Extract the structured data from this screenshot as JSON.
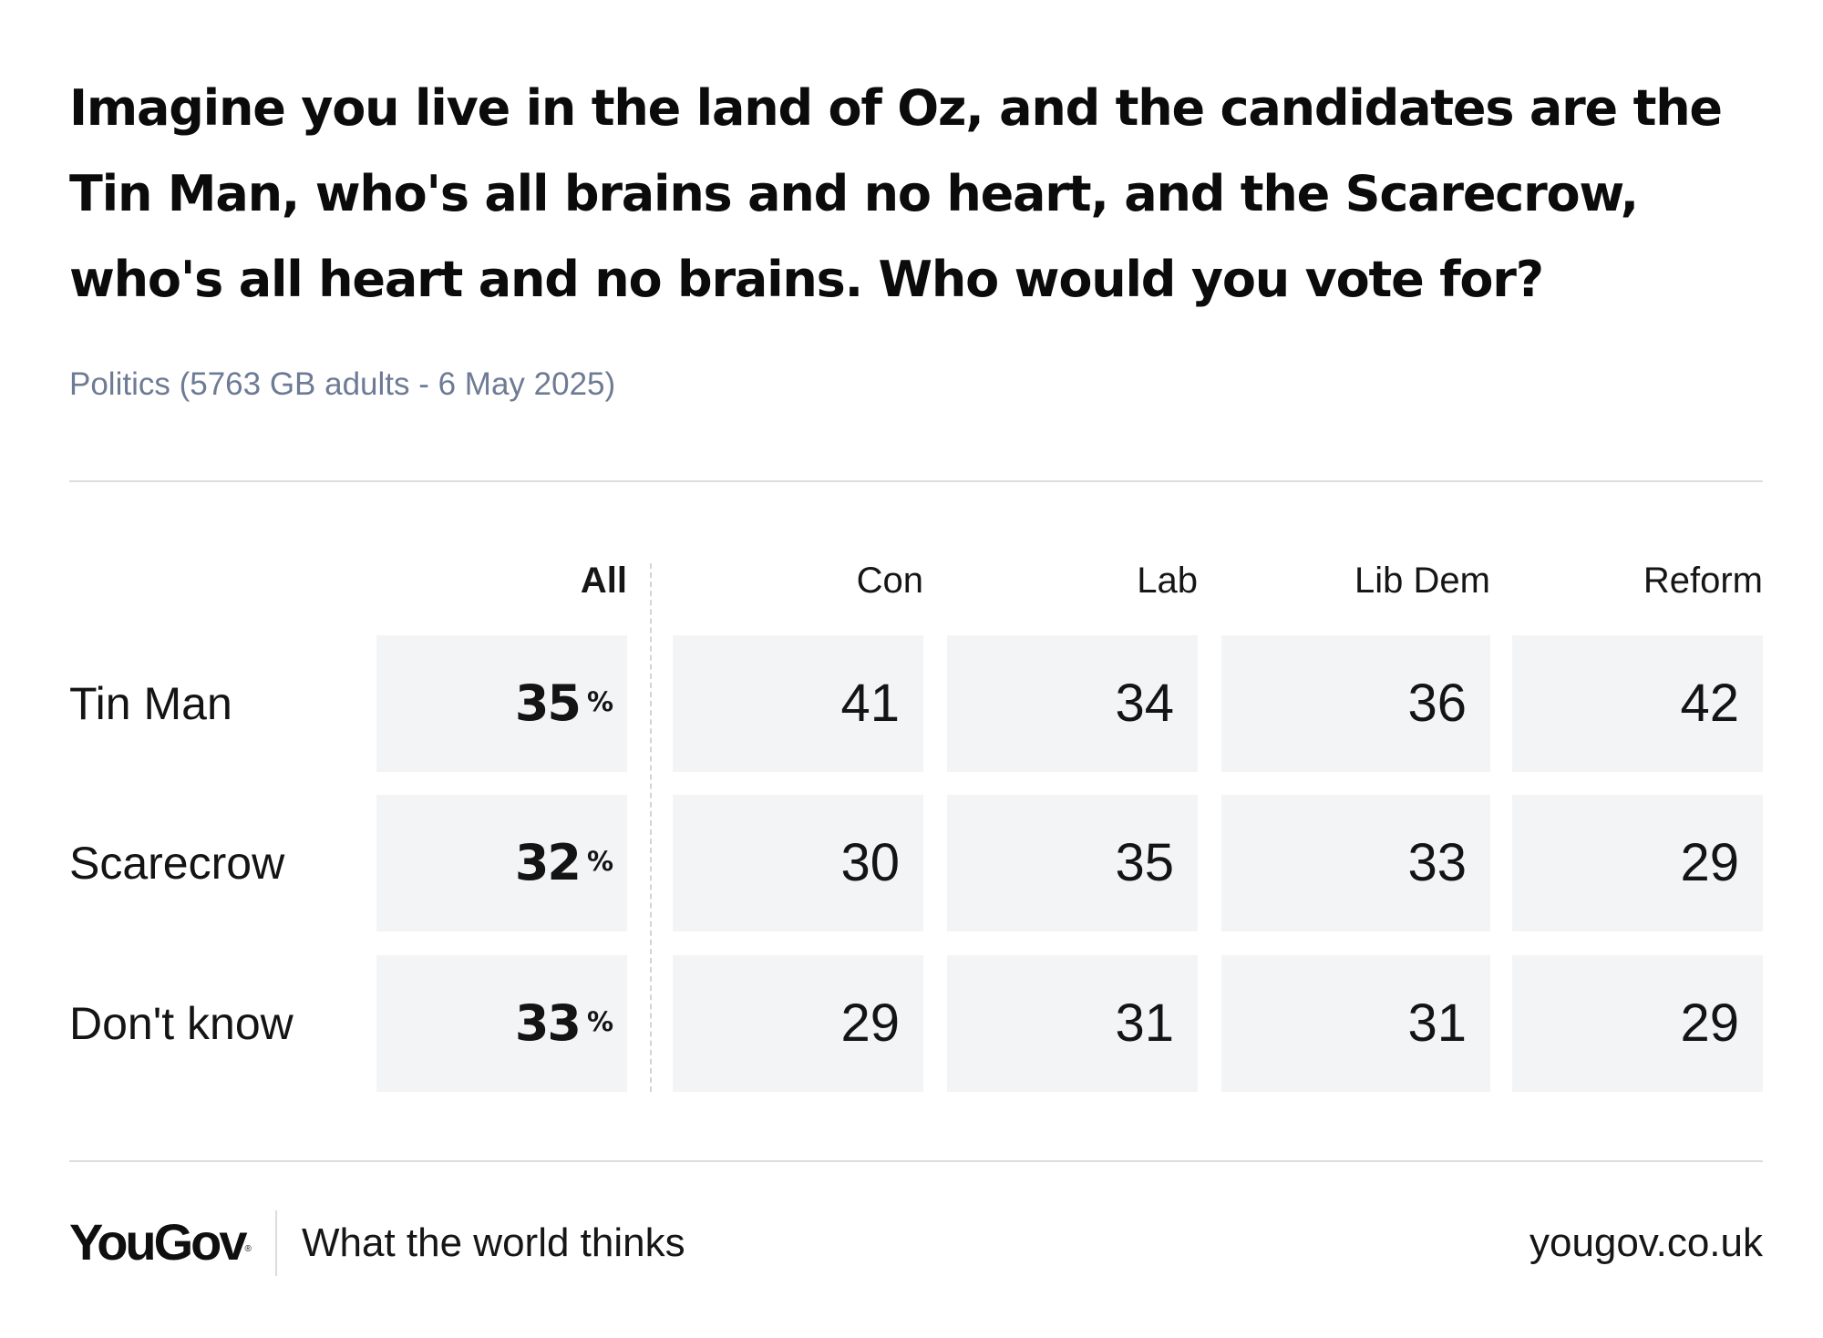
{
  "title_lines": [
    "Imagine you live in the land of Oz, and the candidates are the",
    "Tin Man, who's all brains and no heart, and the Scarecrow,",
    "who's all heart and no brains. Who would you vote for?"
  ],
  "subtitle": "Politics (5763 GB adults - 6 May 2025)",
  "chart_data": {
    "type": "table",
    "columns": [
      "All",
      "Con",
      "Lab",
      "Lib Dem",
      "Reform"
    ],
    "rows": [
      "Tin Man",
      "Scarecrow",
      "Don't know"
    ],
    "values": [
      [
        35,
        41,
        34,
        36,
        42
      ],
      [
        32,
        30,
        35,
        33,
        29
      ],
      [
        33,
        29,
        31,
        31,
        29
      ]
    ],
    "all_unit": "%"
  },
  "footer": {
    "brand": "YouGov",
    "brand_mark": "®",
    "tagline": "What the world thinks",
    "site": "yougov.co.uk"
  },
  "colors": {
    "cell_background": "#f3f4f6",
    "subtitle": "#6e7b95",
    "rule": "#dcdde1"
  }
}
